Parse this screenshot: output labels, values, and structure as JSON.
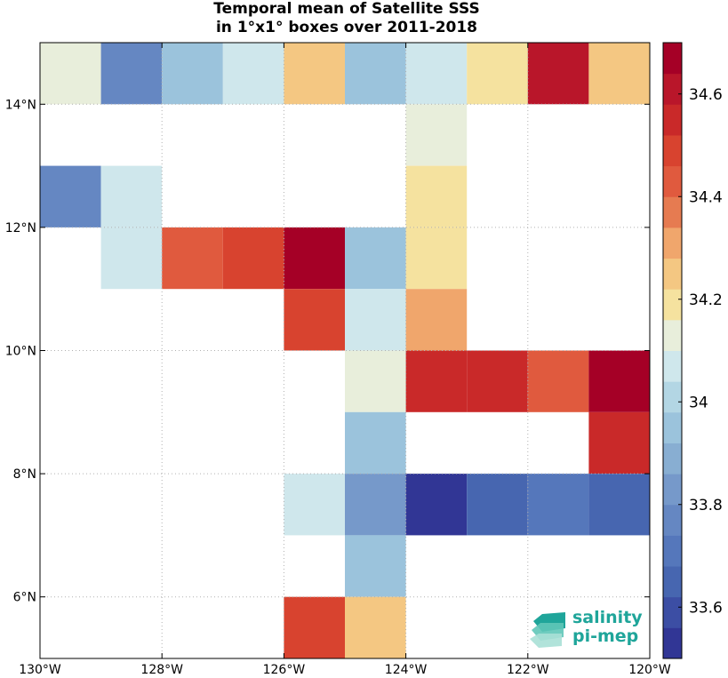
{
  "chart_data": {
    "type": "heatmap",
    "title": "Temporal mean of Satellite SSS",
    "subtitle": "in 1°x1° boxes over 2011-2018",
    "xlim": [
      -130,
      -120
    ],
    "ylim": [
      5,
      15
    ],
    "x_ticks": [
      {
        "value": -130,
        "label": "130°W"
      },
      {
        "value": -128,
        "label": "128°W"
      },
      {
        "value": -126,
        "label": "126°W"
      },
      {
        "value": -124,
        "label": "124°W"
      },
      {
        "value": -122,
        "label": "122°W"
      },
      {
        "value": -120,
        "label": "120°W"
      }
    ],
    "y_ticks": [
      {
        "value": 6,
        "label": "6°N"
      },
      {
        "value": 8,
        "label": "8°N"
      },
      {
        "value": 10,
        "label": "10°N"
      },
      {
        "value": 12,
        "label": "12°N"
      },
      {
        "value": 14,
        "label": "14°N"
      }
    ],
    "grid": true,
    "colorbar": {
      "min": 33.5,
      "max": 34.7,
      "levels": 20,
      "ticks": [
        {
          "value": 33.6,
          "label": "33.6"
        },
        {
          "value": 33.8,
          "label": "33.8"
        },
        {
          "value": 34.0,
          "label": "34"
        },
        {
          "value": 34.2,
          "label": "34.2"
        },
        {
          "value": 34.4,
          "label": "34.4"
        },
        {
          "value": 34.6,
          "label": "34.6"
        }
      ],
      "colors": [
        "#313695",
        "#3c4ea4",
        "#4766b0",
        "#5577bb",
        "#6587c2",
        "#7699ca",
        "#88aed2",
        "#9bc3dc",
        "#b3d6e4",
        "#cfe7ec",
        "#e8eedb",
        "#f5e29f",
        "#f4c782",
        "#f0a66c",
        "#e67b51",
        "#e05a3e",
        "#d8432f",
        "#c92929",
        "#b9162a",
        "#a50026"
      ]
    },
    "cells": [
      {
        "lon": -130,
        "lat": 14,
        "value": 34.12
      },
      {
        "lon": -129,
        "lat": 14,
        "value": 33.76
      },
      {
        "lon": -128,
        "lat": 14,
        "value": 33.95
      },
      {
        "lon": -127,
        "lat": 14,
        "value": 34.06
      },
      {
        "lon": -126,
        "lat": 14,
        "value": 34.27
      },
      {
        "lon": -125,
        "lat": 14,
        "value": 33.98
      },
      {
        "lon": -124,
        "lat": 14,
        "value": 34.06
      },
      {
        "lon": -123,
        "lat": 14,
        "value": 34.18
      },
      {
        "lon": -122,
        "lat": 14,
        "value": 34.62
      },
      {
        "lon": -121,
        "lat": 14,
        "value": 34.27
      },
      {
        "lon": -124,
        "lat": 13,
        "value": 34.12
      },
      {
        "lon": -130,
        "lat": 12,
        "value": 33.76
      },
      {
        "lon": -129,
        "lat": 12,
        "value": 34.06
      },
      {
        "lon": -124,
        "lat": 12,
        "value": 34.18
      },
      {
        "lon": -129,
        "lat": 11,
        "value": 34.06
      },
      {
        "lon": -128,
        "lat": 11,
        "value": 34.42
      },
      {
        "lon": -127,
        "lat": 11,
        "value": 34.48
      },
      {
        "lon": -126,
        "lat": 11,
        "value": 34.68
      },
      {
        "lon": -125,
        "lat": 11,
        "value": 33.98
      },
      {
        "lon": -124,
        "lat": 11,
        "value": 34.18
      },
      {
        "lon": -126,
        "lat": 10,
        "value": 34.48
      },
      {
        "lon": -125,
        "lat": 10,
        "value": 34.06
      },
      {
        "lon": -124,
        "lat": 10,
        "value": 34.33
      },
      {
        "lon": -125,
        "lat": 9,
        "value": 34.12
      },
      {
        "lon": -124,
        "lat": 9,
        "value": 34.52
      },
      {
        "lon": -123,
        "lat": 9,
        "value": 34.57
      },
      {
        "lon": -122,
        "lat": 9,
        "value": 34.42
      },
      {
        "lon": -121,
        "lat": 9,
        "value": 34.68
      },
      {
        "lon": -125,
        "lat": 8,
        "value": 33.92
      },
      {
        "lon": -121,
        "lat": 8,
        "value": 34.52
      },
      {
        "lon": -126,
        "lat": 7,
        "value": 34.06
      },
      {
        "lon": -125,
        "lat": 7,
        "value": 33.82
      },
      {
        "lon": -124,
        "lat": 7,
        "value": 33.52
      },
      {
        "lon": -123,
        "lat": 7,
        "value": 33.68
      },
      {
        "lon": -122,
        "lat": 7,
        "value": 33.72
      },
      {
        "lon": -121,
        "lat": 7,
        "value": 33.68
      },
      {
        "lon": -125,
        "lat": 6,
        "value": 33.92
      },
      {
        "lon": -126,
        "lat": 5,
        "value": 34.48
      },
      {
        "lon": -125,
        "lat": 5,
        "value": 34.27
      }
    ]
  },
  "logo": {
    "line1": "salinity",
    "line2": "pi-mep",
    "color": "#1fa59a"
  }
}
